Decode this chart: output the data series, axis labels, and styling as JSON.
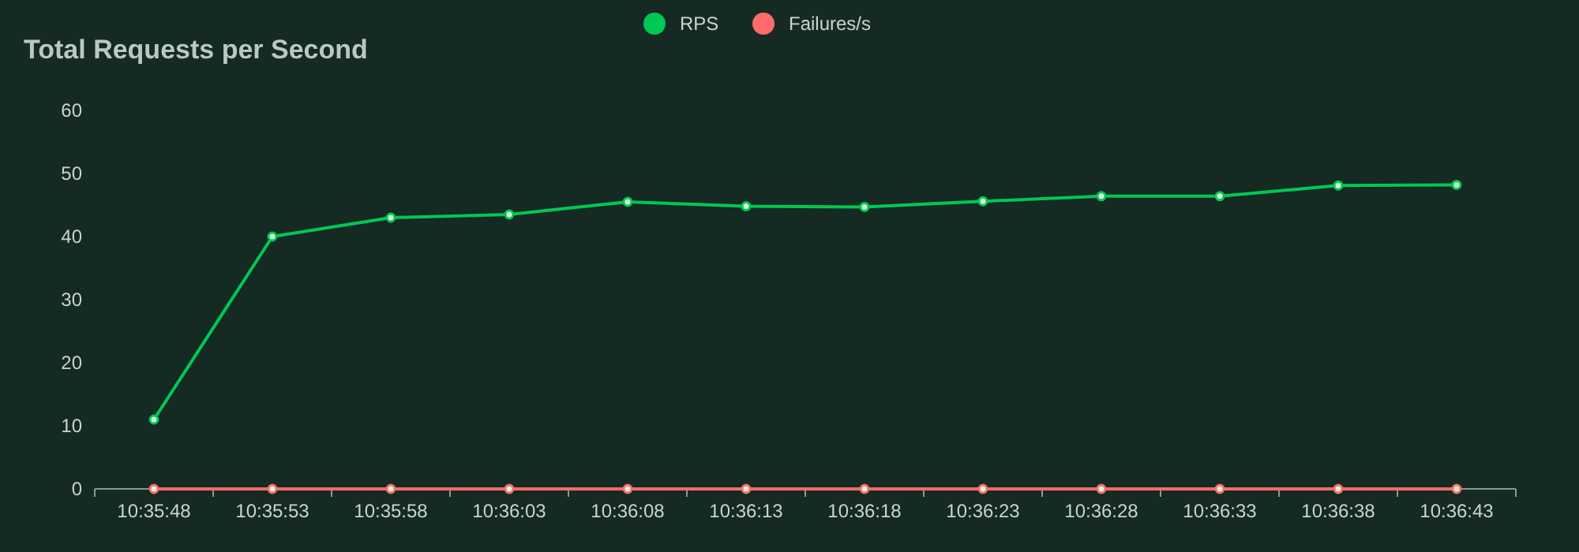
{
  "chart_data": {
    "type": "line",
    "title": "Total Requests per Second",
    "categories": [
      "10:35:48",
      "10:35:53",
      "10:35:58",
      "10:36:03",
      "10:36:08",
      "10:36:13",
      "10:36:18",
      "10:36:23",
      "10:36:28",
      "10:36:33",
      "10:36:38",
      "10:36:43"
    ],
    "series": [
      {
        "name": "RPS",
        "color": "#00c853",
        "values": [
          11,
          40,
          43,
          43.5,
          45.5,
          44.8,
          44.7,
          45.6,
          46.4,
          46.4,
          48.1,
          48.2
        ]
      },
      {
        "name": "Failures/s",
        "color": "#ff6b6b",
        "values": [
          0,
          0,
          0,
          0,
          0,
          0,
          0,
          0,
          0,
          0,
          0,
          0
        ]
      }
    ],
    "ylim": [
      0,
      60
    ],
    "yticks": [
      0,
      10,
      20,
      30,
      40,
      50,
      60
    ],
    "grid": false,
    "legend": "top",
    "marker": "circle",
    "line_style": "solid"
  }
}
